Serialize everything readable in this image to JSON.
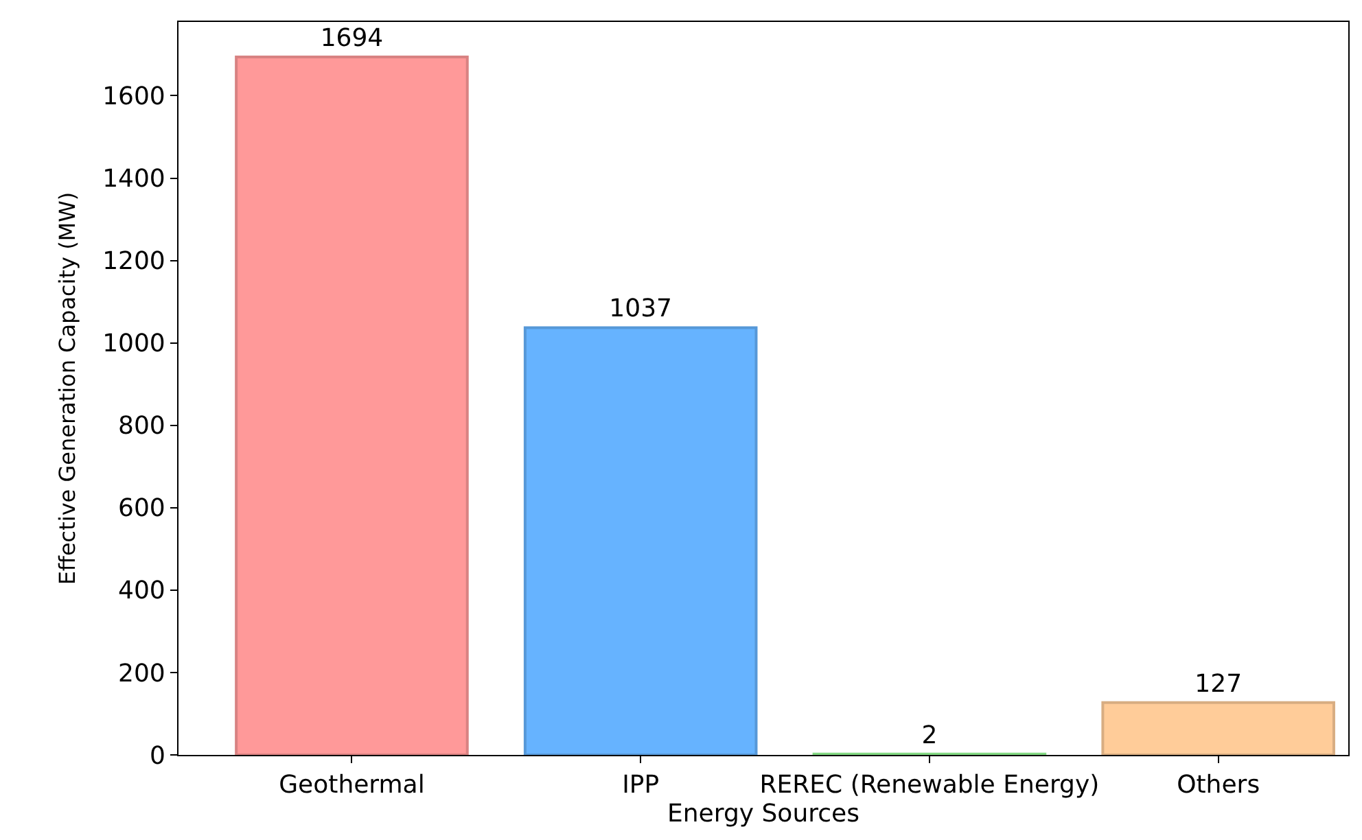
{
  "chart_data": {
    "type": "bar",
    "categories": [
      "Geothermal",
      "IPP",
      "REREC (Renewable Energy)",
      "Others"
    ],
    "values": [
      1694,
      1037,
      2,
      127
    ],
    "colors": [
      "#ff9999",
      "#66b3ff",
      "#99ff99",
      "#ffcc99"
    ],
    "xlabel": "Energy Sources",
    "ylabel": "Effective Generation Capacity (MW)",
    "ylim": [
      0,
      1779
    ],
    "yticks": [
      0,
      200,
      400,
      600,
      800,
      1000,
      1200,
      1400,
      1600
    ],
    "data_labels": true
  }
}
